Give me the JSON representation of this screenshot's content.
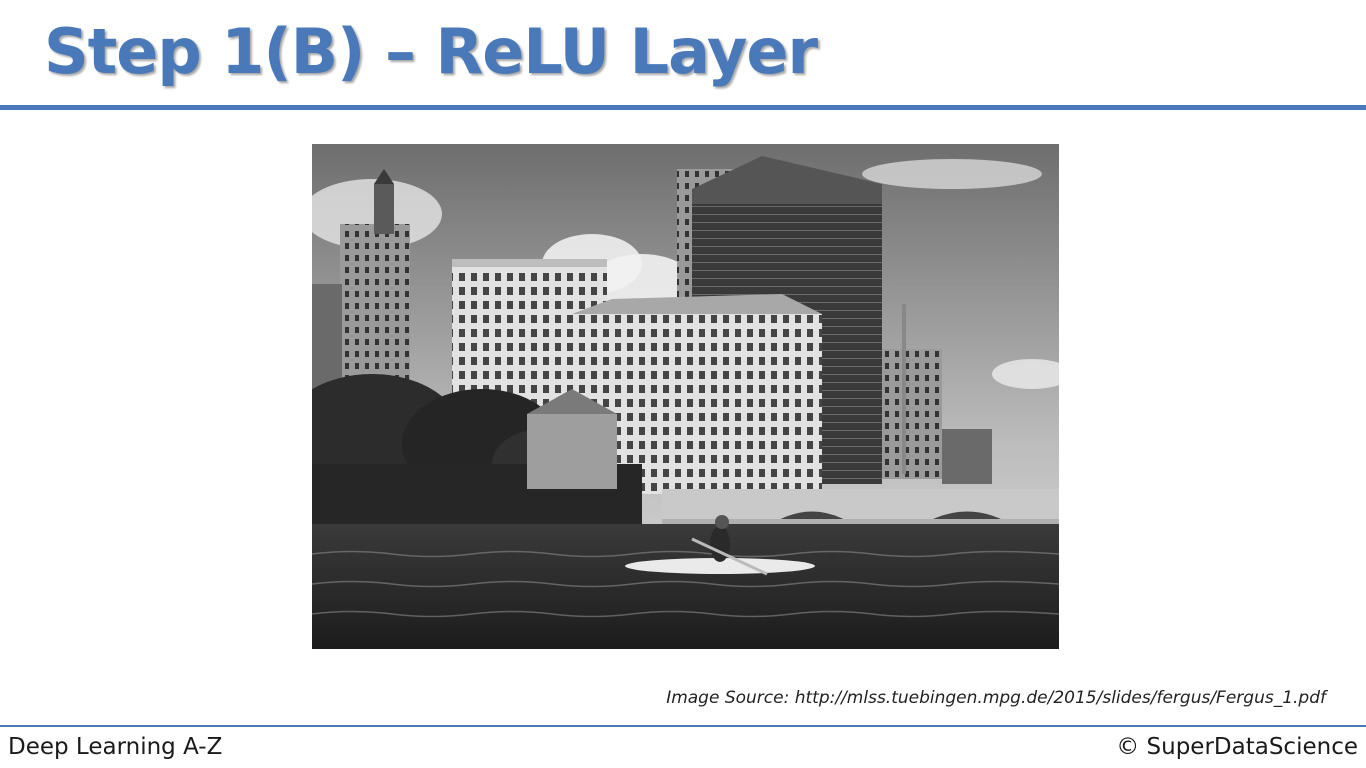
{
  "slide": {
    "title": "Step 1(B) – ReLU Layer",
    "image_source": "Image Source: http://mlss.tuebingen.mpg.de/2015/slides/fergus/Fergus_1.pdf",
    "footer_left": "Deep Learning A-Z",
    "footer_right": "© SuperDataScience"
  },
  "colors": {
    "accent": "#4a79ba"
  }
}
